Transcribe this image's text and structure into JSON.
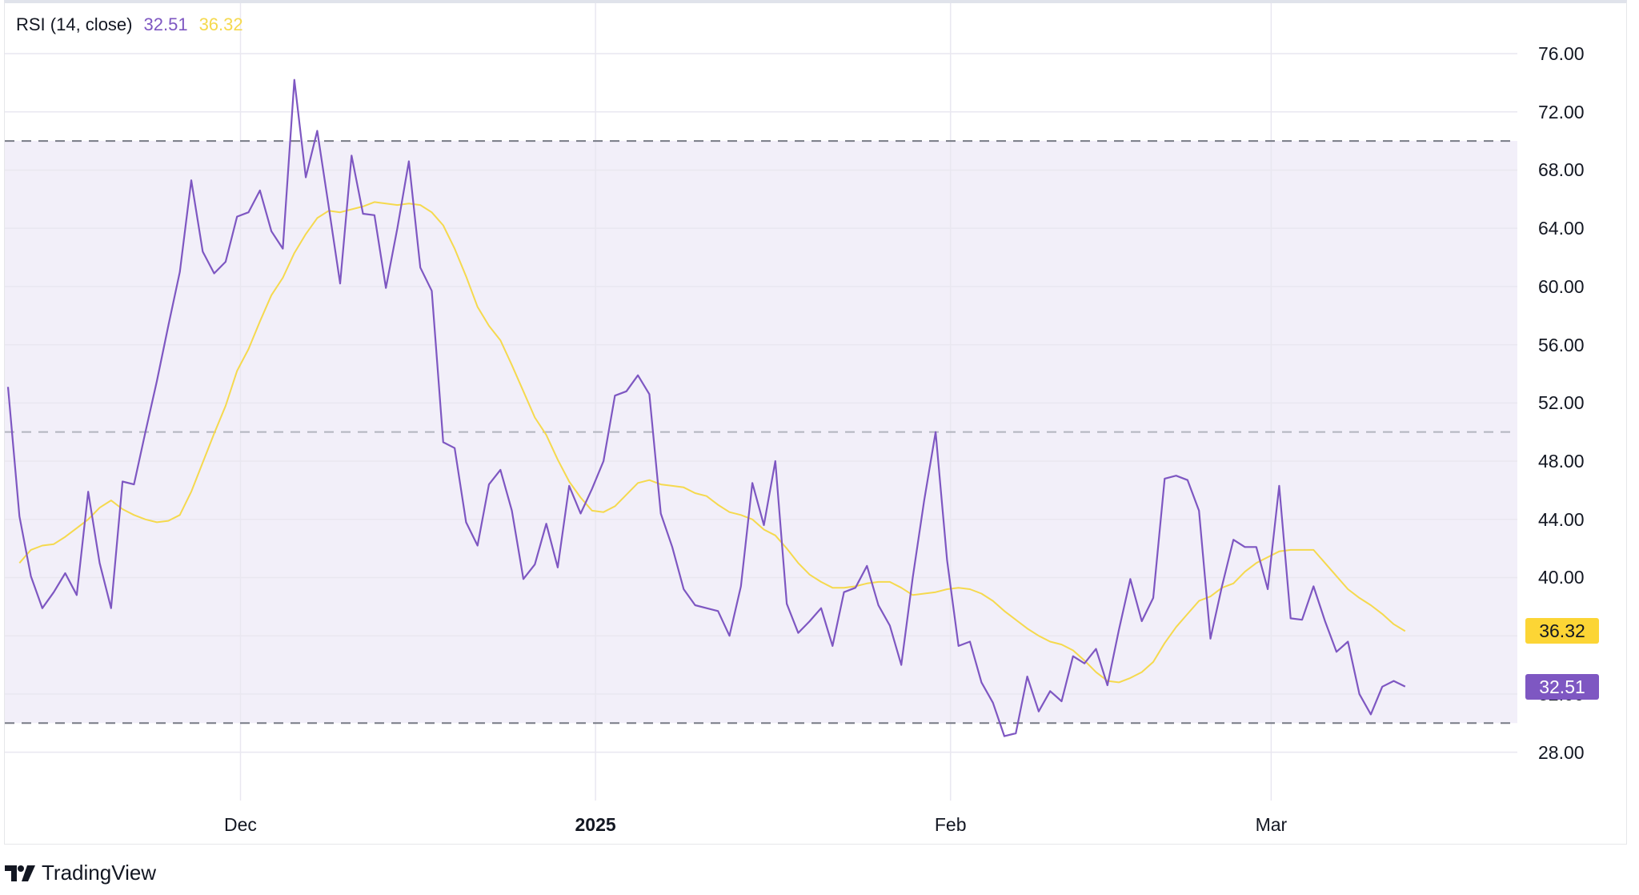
{
  "indicator": {
    "title": "RSI (14, close)",
    "rsi_value": "32.51",
    "ma_value": "36.32"
  },
  "colors": {
    "rsi": "#7e57c2",
    "ma": "#f5d94e",
    "band": "#f2eff9",
    "grid": "#e9e7f0",
    "dashed": "#787b86"
  },
  "y_axis": {
    "ticks": [
      "76.00",
      "72.00",
      "68.00",
      "64.00",
      "60.00",
      "56.00",
      "52.00",
      "48.00",
      "44.00",
      "40.00",
      "36.00",
      "32.00",
      "28.00"
    ]
  },
  "x_axis": {
    "labels": [
      {
        "text": "Dec",
        "bold": false
      },
      {
        "text": "2025",
        "bold": true
      },
      {
        "text": "Feb",
        "bold": false
      },
      {
        "text": "Mar",
        "bold": false
      }
    ]
  },
  "badges": {
    "ma": "36.32",
    "rsi": "32.51"
  },
  "footer": {
    "brand": "TradingView"
  },
  "chart_data": {
    "type": "line",
    "title": "RSI (14, close)",
    "xlabel": "",
    "ylabel": "",
    "ylim": [
      26.5,
      78
    ],
    "grid": true,
    "legend_position": "top-left",
    "x_tick_labels": [
      "Dec",
      "2025",
      "Feb",
      "Mar"
    ],
    "y_tick_labels": [
      76,
      72,
      68,
      64,
      60,
      56,
      52,
      48,
      44,
      40,
      36,
      32,
      28
    ],
    "bands": {
      "upper": 70,
      "middle": 50,
      "lower": 30
    },
    "x_start_approx": "Nov 11",
    "x_step": "1 day",
    "series": [
      {
        "name": "RSI",
        "color": "#7e57c2",
        "last_value": 32.51,
        "values": [
          53.1,
          44.2,
          40.1,
          37.9,
          39.0,
          40.3,
          38.8,
          45.9,
          41.0,
          37.9,
          46.6,
          46.4,
          50.0,
          53.5,
          57.3,
          61.0,
          67.3,
          62.4,
          60.9,
          61.7,
          64.8,
          65.1,
          66.6,
          63.8,
          62.6,
          74.2,
          67.5,
          70.7,
          65.5,
          60.2,
          69.0,
          65.0,
          64.9,
          59.9,
          64.0,
          68.6,
          61.3,
          59.7,
          49.3,
          48.9,
          43.8,
          42.2,
          46.4,
          47.4,
          44.6,
          39.9,
          40.9,
          43.7,
          40.7,
          46.3,
          44.4,
          46.1,
          48.0,
          52.5,
          52.8,
          53.9,
          52.6,
          44.4,
          42.1,
          39.2,
          38.1,
          37.9,
          37.7,
          36.0,
          39.4,
          46.5,
          43.6,
          48.0,
          38.2,
          36.2,
          37.0,
          37.9,
          35.3,
          39.0,
          39.3,
          40.8,
          38.1,
          36.7,
          34.0,
          40.0,
          45.3,
          50.0,
          41.2,
          35.3,
          35.6,
          32.8,
          31.4,
          29.1,
          29.3,
          33.2,
          30.8,
          32.2,
          31.5,
          34.6,
          34.1,
          35.1,
          32.6,
          36.4,
          39.9,
          37.0,
          38.6,
          46.8,
          47.0,
          46.7,
          44.6,
          35.8,
          39.4,
          42.6,
          42.1,
          42.1,
          39.2,
          46.3,
          37.2,
          37.1,
          39.4,
          37.0,
          34.9,
          35.6,
          32.0,
          30.6,
          32.5,
          32.9,
          32.51
        ]
      },
      {
        "name": "RSI-based MA",
        "color": "#f5d94e",
        "last_value": 36.32,
        "values": [
          41.0,
          41.9,
          42.2,
          42.3,
          42.8,
          43.4,
          44.0,
          44.8,
          45.3,
          44.7,
          44.3,
          44.0,
          43.8,
          43.9,
          44.3,
          45.9,
          47.9,
          49.9,
          51.8,
          54.2,
          55.7,
          57.6,
          59.4,
          60.6,
          62.3,
          63.6,
          64.7,
          65.2,
          65.1,
          65.3,
          65.5,
          65.8,
          65.7,
          65.6,
          65.7,
          65.6,
          65.1,
          64.2,
          62.6,
          60.7,
          58.6,
          57.3,
          56.3,
          54.6,
          52.8,
          51.0,
          49.8,
          48.1,
          46.6,
          45.5,
          44.6,
          44.5,
          44.9,
          45.7,
          46.5,
          46.7,
          46.4,
          46.3,
          46.2,
          45.8,
          45.6,
          45.0,
          44.5,
          44.3,
          44.0,
          43.3,
          42.9,
          42.0,
          41.0,
          40.2,
          39.7,
          39.3,
          39.3,
          39.4,
          39.6,
          39.7,
          39.7,
          39.3,
          38.8,
          38.9,
          39.0,
          39.2,
          39.3,
          39.2,
          38.9,
          38.4,
          37.7,
          37.1,
          36.5,
          36.0,
          35.6,
          35.4,
          35.0,
          34.3,
          33.5,
          32.9,
          32.8,
          33.1,
          33.5,
          34.2,
          35.5,
          36.6,
          37.5,
          38.4,
          38.7,
          39.3,
          39.6,
          40.4,
          41.0,
          41.4,
          41.8,
          41.9,
          41.9,
          41.9,
          41.0,
          40.1,
          39.2,
          38.6,
          38.1,
          37.5,
          36.8,
          36.32
        ]
      }
    ]
  }
}
